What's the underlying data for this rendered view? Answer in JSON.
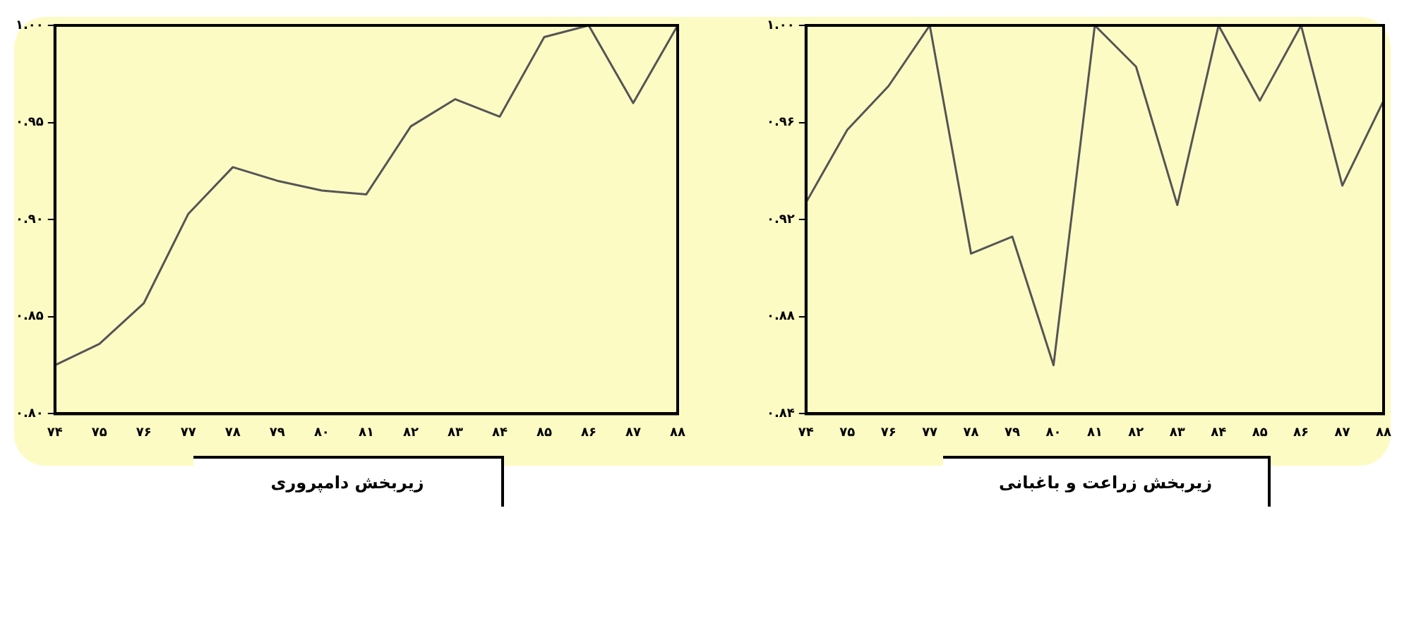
{
  "chart_data": [
    {
      "type": "line",
      "xlabel": "زیربخش دامپروری",
      "categories": [
        "۷۴",
        "۷۵",
        "۷۶",
        "۷۷",
        "۷۸",
        "۷۹",
        "۸۰",
        "۸۱",
        "۸۲",
        "۸۳",
        "۸۴",
        "۸۵",
        "۸۶",
        "۸۷",
        "۸۸"
      ],
      "series": [
        {
          "color": "#555555",
          "values": [
            0.825,
            0.836,
            0.857,
            0.903,
            0.927,
            0.92,
            0.915,
            0.913,
            0.948,
            0.962,
            0.953,
            0.994,
            1.0,
            0.96,
            1.0
          ]
        }
      ],
      "ylim": [
        0.8,
        1.0
      ],
      "yticks": [
        {
          "value": 0.8,
          "label": "۰.۸۰"
        },
        {
          "value": 0.85,
          "label": "۰.۸۵"
        },
        {
          "value": 0.9,
          "label": "۰.۹۰"
        },
        {
          "value": 0.95,
          "label": "۰.۹۵"
        },
        {
          "value": 1.0,
          "label": "۱.۰۰"
        }
      ],
      "grid": false
    },
    {
      "type": "line",
      "xlabel": "زیربخش زراعت و باغبانی",
      "categories": [
        "۷۴",
        "۷۵",
        "۷۶",
        "۷۷",
        "۷۸",
        "۷۹",
        "۸۰",
        "۸۱",
        "۸۲",
        "۸۳",
        "۸۴",
        "۸۵",
        "۸۶",
        "۸۷",
        "۸۸"
      ],
      "series": [
        {
          "color": "#555555",
          "values": [
            0.927,
            0.957,
            0.975,
            1.0,
            0.906,
            0.913,
            0.86,
            1.0,
            0.983,
            0.926,
            1.0,
            0.969,
            1.0,
            0.934,
            0.969
          ]
        }
      ],
      "ylim": [
        0.84,
        1.0
      ],
      "yticks": [
        {
          "value": 0.84,
          "label": "۰.۸۴"
        },
        {
          "value": 0.88,
          "label": "۰.۸۸"
        },
        {
          "value": 0.92,
          "label": "۰.۹۲"
        },
        {
          "value": 0.96,
          "label": "۰.۹۶"
        },
        {
          "value": 1.0,
          "label": "۱.۰۰"
        }
      ],
      "grid": false
    }
  ]
}
